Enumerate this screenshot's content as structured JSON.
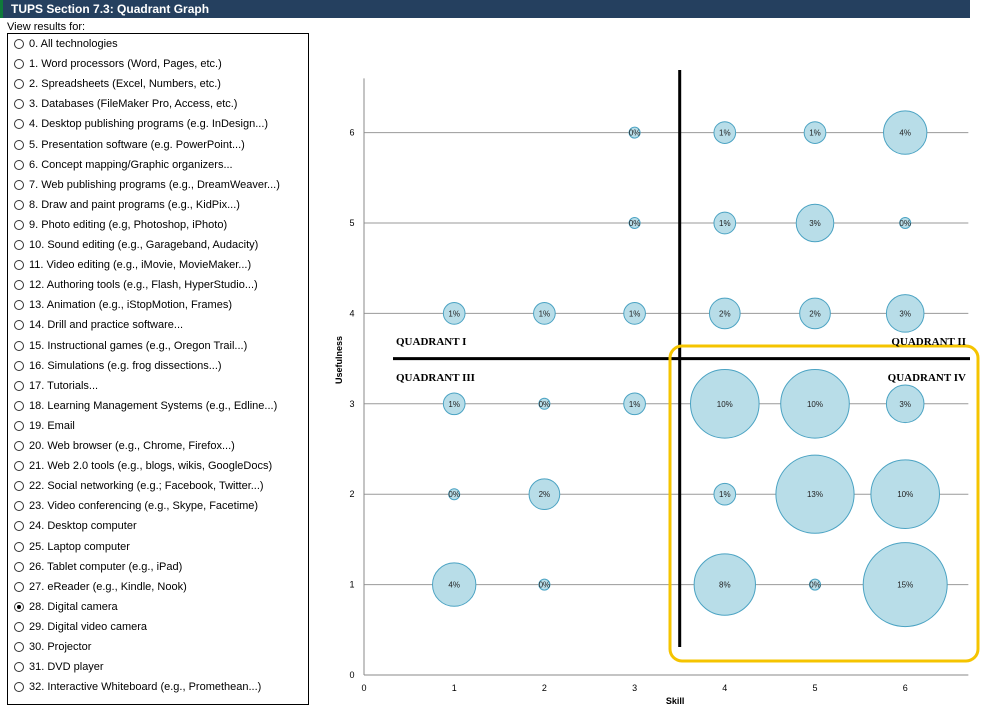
{
  "title": "TUPS Section 7.3: Quadrant Graph",
  "view_label": "View results for:",
  "options": [
    {
      "label": "0. All technologies",
      "selected": false
    },
    {
      "label": "1. Word processors (Word, Pages, etc.)",
      "selected": false
    },
    {
      "label": "2. Spreadsheets (Excel, Numbers, etc.)",
      "selected": false
    },
    {
      "label": "3. Databases (FileMaker Pro, Access, etc.)",
      "selected": false
    },
    {
      "label": "4. Desktop publishing programs (e.g. InDesign...)",
      "selected": false
    },
    {
      "label": "5. Presentation software (e.g. PowerPoint...)",
      "selected": false
    },
    {
      "label": "6. Concept mapping/Graphic organizers...",
      "selected": false
    },
    {
      "label": "7. Web publishing programs (e.g., DreamWeaver...)",
      "selected": false
    },
    {
      "label": "8. Draw and paint programs (e.g., KidPix...)",
      "selected": false
    },
    {
      "label": "9. Photo editing (e.g, Photoshop, iPhoto)",
      "selected": false
    },
    {
      "label": "10. Sound editing (e.g., Garageband, Audacity)",
      "selected": false
    },
    {
      "label": "11. Video editing (e.g., iMovie, MovieMaker...)",
      "selected": false
    },
    {
      "label": "12. Authoring tools (e.g., Flash, HyperStudio...)",
      "selected": false
    },
    {
      "label": "13. Animation (e.g., iStopMotion, Frames)",
      "selected": false
    },
    {
      "label": "14. Drill and practice software...",
      "selected": false
    },
    {
      "label": "15. Instructional games (e.g., Oregon Trail...)",
      "selected": false
    },
    {
      "label": "16. Simulations (e.g. frog dissections...)",
      "selected": false
    },
    {
      "label": "17. Tutorials...",
      "selected": false
    },
    {
      "label": "18. Learning Management Systems (e.g., Edline...)",
      "selected": false
    },
    {
      "label": "19. Email",
      "selected": false
    },
    {
      "label": "20. Web browser (e.g., Chrome, Firefox...)",
      "selected": false
    },
    {
      "label": "21. Web 2.0 tools (e.g., blogs, wikis, GoogleDocs)",
      "selected": false
    },
    {
      "label": "22. Social networking (e.g.; Facebook, Twitter...)",
      "selected": false
    },
    {
      "label": "23. Video conferencing (e.g., Skype, Facetime)",
      "selected": false
    },
    {
      "label": "24. Desktop computer",
      "selected": false
    },
    {
      "label": "25. Laptop computer",
      "selected": false
    },
    {
      "label": "26. Tablet computer (e.g., iPad)",
      "selected": false
    },
    {
      "label": "27. eReader (e.g., Kindle, Nook)",
      "selected": false
    },
    {
      "label": "28. Digital camera",
      "selected": true
    },
    {
      "label": "29. Digital video camera",
      "selected": false
    },
    {
      "label": "30. Projector",
      "selected": false
    },
    {
      "label": "31. DVD player",
      "selected": false
    },
    {
      "label": "32. Interactive Whiteboard (e.g., Promethean...)",
      "selected": false
    }
  ],
  "chart_data": {
    "type": "scatter",
    "subtype": "bubble",
    "xlabel": "Skill",
    "ylabel": "Usefulness",
    "xlim": [
      0,
      6.7
    ],
    "ylim": [
      0,
      6.6
    ],
    "xticks": [
      "0",
      "1",
      "2",
      "3",
      "4",
      "5",
      "6"
    ],
    "yticks": [
      "0",
      "1",
      "2",
      "3",
      "4",
      "5",
      "6"
    ],
    "gridlines": "horizontal",
    "quadrant_divider": {
      "x": 3.5,
      "y": 3.5
    },
    "quadrant_labels": [
      "QUADRANT I",
      "QUADRANT II",
      "QUADRANT III",
      "QUADRANT IV"
    ],
    "highlight": {
      "quadrant": "QUADRANT IV",
      "color": "#f5c400"
    },
    "bubble_fill": "#b8dde8",
    "bubble_stroke": "#4ba3c3",
    "points": [
      {
        "x": 3,
        "y": 6,
        "value": 0,
        "label": "0%"
      },
      {
        "x": 4,
        "y": 6,
        "value": 1,
        "label": "1%"
      },
      {
        "x": 5,
        "y": 6,
        "value": 1,
        "label": "1%"
      },
      {
        "x": 6,
        "y": 6,
        "value": 4,
        "label": "4%"
      },
      {
        "x": 3,
        "y": 5,
        "value": 0,
        "label": "0%"
      },
      {
        "x": 4,
        "y": 5,
        "value": 1,
        "label": "1%"
      },
      {
        "x": 5,
        "y": 5,
        "value": 3,
        "label": "3%"
      },
      {
        "x": 6,
        "y": 5,
        "value": 0,
        "label": "0%"
      },
      {
        "x": 1,
        "y": 4,
        "value": 1,
        "label": "1%"
      },
      {
        "x": 2,
        "y": 4,
        "value": 1,
        "label": "1%"
      },
      {
        "x": 3,
        "y": 4,
        "value": 1,
        "label": "1%"
      },
      {
        "x": 4,
        "y": 4,
        "value": 2,
        "label": "2%"
      },
      {
        "x": 5,
        "y": 4,
        "value": 2,
        "label": "2%"
      },
      {
        "x": 6,
        "y": 4,
        "value": 3,
        "label": "3%"
      },
      {
        "x": 1,
        "y": 3,
        "value": 1,
        "label": "1%"
      },
      {
        "x": 2,
        "y": 3,
        "value": 0,
        "label": "0%"
      },
      {
        "x": 3,
        "y": 3,
        "value": 1,
        "label": "1%"
      },
      {
        "x": 4,
        "y": 3,
        "value": 10,
        "label": "10%"
      },
      {
        "x": 5,
        "y": 3,
        "value": 10,
        "label": "10%"
      },
      {
        "x": 6,
        "y": 3,
        "value": 3,
        "label": "3%"
      },
      {
        "x": 1,
        "y": 2,
        "value": 0,
        "label": "0%"
      },
      {
        "x": 2,
        "y": 2,
        "value": 2,
        "label": "2%"
      },
      {
        "x": 4,
        "y": 2,
        "value": 1,
        "label": "1%"
      },
      {
        "x": 5,
        "y": 2,
        "value": 13,
        "label": "13%"
      },
      {
        "x": 6,
        "y": 2,
        "value": 10,
        "label": "10%"
      },
      {
        "x": 1,
        "y": 1,
        "value": 4,
        "label": "4%"
      },
      {
        "x": 2,
        "y": 1,
        "value": 0,
        "label": "0%"
      },
      {
        "x": 4,
        "y": 1,
        "value": 8,
        "label": "8%"
      },
      {
        "x": 5,
        "y": 1,
        "value": 0,
        "label": "0%"
      },
      {
        "x": 6,
        "y": 1,
        "value": 15,
        "label": "15%"
      }
    ]
  }
}
